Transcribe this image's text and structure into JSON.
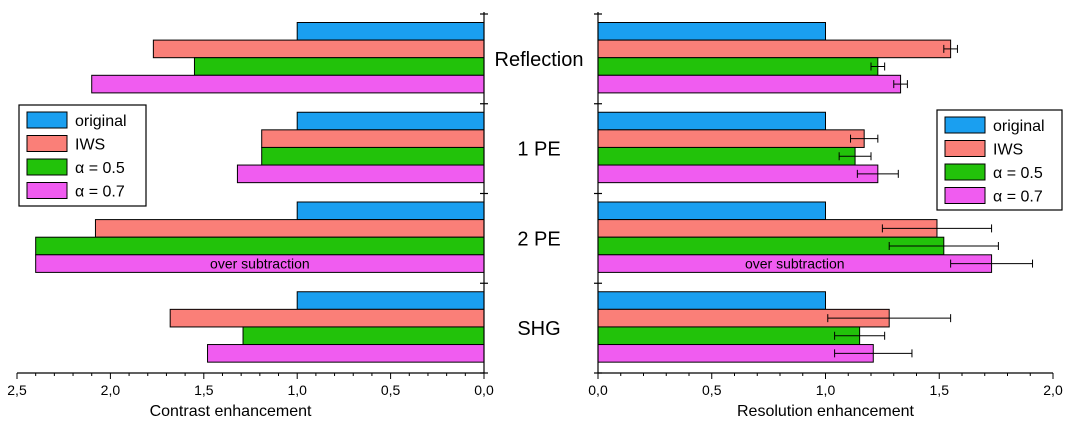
{
  "chart_data": [
    {
      "type": "bar",
      "orientation": "horizontal",
      "xaxis_direction": "reversed",
      "xlabel": "Contrast enhancement",
      "xlim": [
        0,
        2.5
      ],
      "xticks": [
        "2,5",
        "2,0",
        "1,5",
        "1,0",
        "0,5",
        "0,0"
      ],
      "categories": [
        "Reflection",
        "1 PE",
        "2 PE",
        "SHG"
      ],
      "series": [
        {
          "name": "original",
          "color": "#1a9ff0",
          "values": [
            1.0,
            1.0,
            1.0,
            1.0
          ]
        },
        {
          "name": "IWS",
          "color": "#fa7f78",
          "values": [
            1.77,
            1.19,
            2.08,
            1.68
          ]
        },
        {
          "name": "α = 0.5",
          "color": "#22c20a",
          "values": [
            1.55,
            1.19,
            2.4,
            1.29
          ]
        },
        {
          "name": "α = 0.7",
          "color": "#f05cf0",
          "values": [
            2.1,
            1.32,
            2.4,
            1.48
          ]
        }
      ],
      "annotations": [
        {
          "category": "2 PE",
          "series": "α = 0.7",
          "text": "over subtraction"
        }
      ],
      "legend": {
        "position": "left",
        "entries": [
          "original",
          "IWS",
          "α = 0.5",
          "α = 0.7"
        ]
      }
    },
    {
      "type": "bar",
      "orientation": "horizontal",
      "xlabel": "Resolution enhancement",
      "xlim": [
        0,
        2.0
      ],
      "xticks": [
        "0,0",
        "0,5",
        "1,0",
        "1,5",
        "2,0"
      ],
      "categories": [
        "Reflection",
        "1 PE",
        "2 PE",
        "SHG"
      ],
      "series": [
        {
          "name": "original",
          "color": "#1a9ff0",
          "values": [
            1.0,
            1.0,
            1.0,
            1.0
          ],
          "errors": [
            null,
            null,
            null,
            null
          ]
        },
        {
          "name": "IWS",
          "color": "#fa7f78",
          "values": [
            1.55,
            1.17,
            1.49,
            1.28
          ],
          "errors": [
            0.03,
            0.06,
            0.24,
            0.27
          ]
        },
        {
          "name": "α = 0.5",
          "color": "#22c20a",
          "values": [
            1.23,
            1.13,
            1.52,
            1.15
          ],
          "errors": [
            0.03,
            0.07,
            0.24,
            0.11
          ]
        },
        {
          "name": "α = 0.7",
          "color": "#f05cf0",
          "values": [
            1.33,
            1.23,
            1.73,
            1.21
          ],
          "errors": [
            0.03,
            0.09,
            0.18,
            0.17
          ]
        }
      ],
      "annotations": [
        {
          "category": "2 PE",
          "series": "α = 0.7",
          "text": "over subtraction"
        }
      ],
      "legend": {
        "position": "right",
        "entries": [
          "original",
          "IWS",
          "α = 0.5",
          "α = 0.7"
        ]
      }
    }
  ]
}
